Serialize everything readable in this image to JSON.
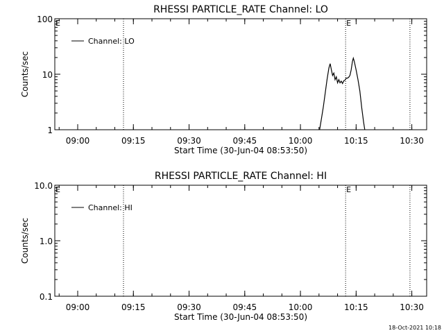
{
  "chart_data": [
    {
      "type": "line",
      "title": "RHESSI PARTICLE_RATE Channel: LO",
      "xlabel": "Start Time (30-Jun-04 08:53:50)",
      "ylabel": "Counts/sec",
      "y_scale": "log",
      "ylim": [
        1,
        100
      ],
      "y_ticks": [
        "1",
        "10",
        "100"
      ],
      "xlim": [
        "08:53:50",
        "10:34:00"
      ],
      "x_ticks": [
        "09:00",
        "09:15",
        "09:30",
        "09:45",
        "10:00",
        "10:15",
        "10:30"
      ],
      "grid": false,
      "legend_position": "top-left",
      "series": [
        {
          "name": "Channel: LO",
          "color": "#000000",
          "points": [
            [
              "10:05:10",
              1.0
            ],
            [
              "10:05:40",
              1.6
            ],
            [
              "10:06:10",
              2.6
            ],
            [
              "10:06:40",
              4.5
            ],
            [
              "10:07:10",
              8.0
            ],
            [
              "10:07:40",
              13.0
            ],
            [
              "10:08:00",
              15.5
            ],
            [
              "10:08:20",
              12.0
            ],
            [
              "10:08:40",
              9.5
            ],
            [
              "10:09:00",
              10.5
            ],
            [
              "10:09:20",
              8.0
            ],
            [
              "10:09:40",
              9.0
            ],
            [
              "10:10:00",
              7.0
            ],
            [
              "10:10:20",
              8.0
            ],
            [
              "10:10:40",
              7.0
            ],
            [
              "10:11:00",
              7.5
            ],
            [
              "10:11:20",
              6.8
            ],
            [
              "10:11:40",
              7.6
            ],
            [
              "10:12:00",
              7.8
            ],
            [
              "10:12:20",
              8.5
            ],
            [
              "10:12:40",
              8.5
            ],
            [
              "10:13:00",
              8.8
            ],
            [
              "10:13:20",
              9.5
            ],
            [
              "10:13:40",
              12.0
            ],
            [
              "10:14:00",
              17.0
            ],
            [
              "10:14:15",
              19.5
            ],
            [
              "10:14:30",
              17.0
            ],
            [
              "10:15:00",
              12.0
            ],
            [
              "10:15:30",
              8.0
            ],
            [
              "10:16:00",
              5.0
            ],
            [
              "10:16:30",
              2.5
            ],
            [
              "10:17:00",
              1.4
            ],
            [
              "10:17:20",
              1.0
            ]
          ]
        }
      ],
      "markers": [
        {
          "time": "09:12:20",
          "label": ""
        },
        {
          "time": "10:12:10",
          "label": "E"
        },
        {
          "time": "10:29:30",
          "label": ""
        }
      ],
      "left_edge_label": "E"
    },
    {
      "type": "line",
      "title": "RHESSI PARTICLE_RATE Channel: HI",
      "xlabel": "Start Time (30-Jun-04 08:53:50)",
      "ylabel": "Counts/sec",
      "y_scale": "log",
      "ylim": [
        0.1,
        10
      ],
      "y_ticks": [
        "0.1",
        "1.0",
        "10.0"
      ],
      "xlim": [
        "08:53:50",
        "10:34:00"
      ],
      "x_ticks": [
        "09:00",
        "09:15",
        "09:30",
        "09:45",
        "10:00",
        "10:15",
        "10:30"
      ],
      "grid": false,
      "legend_position": "top-left",
      "series": [
        {
          "name": "Channel: HI",
          "color": "#000000",
          "points": []
        }
      ],
      "markers": [
        {
          "time": "09:12:20",
          "label": ""
        },
        {
          "time": "10:12:10",
          "label": "E"
        },
        {
          "time": "10:29:30",
          "label": ""
        }
      ],
      "left_edge_label": "E"
    }
  ],
  "footer": {
    "date_stamp": "18-Oct-2021 10:18"
  }
}
